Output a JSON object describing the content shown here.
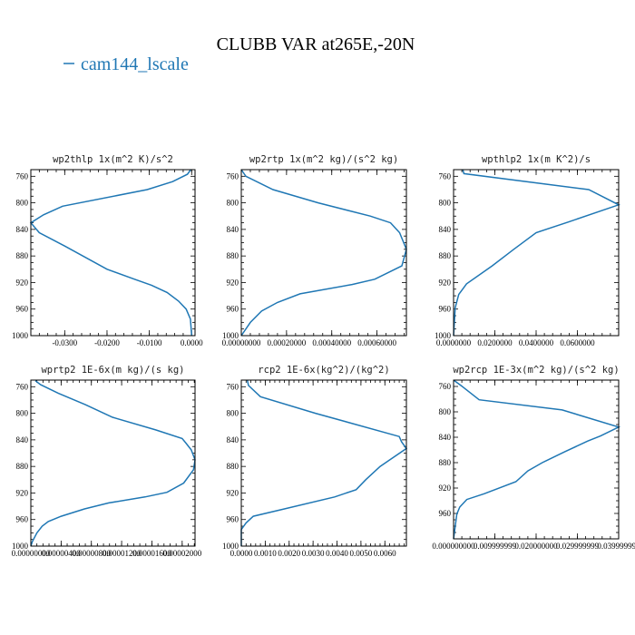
{
  "figure": {
    "title": "CLUBB VAR at265E,-20N",
    "legend": "cam144_lscale",
    "legend_color": "#1f77b4"
  },
  "chart_data": [
    {
      "type": "line",
      "title": "wp2thlp   1x(m^2 K)/s^2",
      "xlim": [
        -0.038,
        0.0008
      ],
      "ylim": [
        1000,
        750
      ],
      "xticks": [
        -0.03,
        -0.02,
        -0.01,
        0.0
      ],
      "xtick_labels": [
        "-0.0300",
        "-0.0200",
        "-0.0100",
        "0.0000"
      ],
      "yticks": [
        760,
        800,
        840,
        880,
        920,
        960,
        1000
      ],
      "x": [
        -0.0002,
        -0.001,
        -0.0045,
        -0.0105,
        -0.0305,
        -0.035,
        -0.038,
        -0.036,
        -0.03,
        -0.02,
        -0.0135,
        -0.0095,
        -0.0058,
        -0.0031,
        -0.0013,
        -0.0003,
        0.0
      ],
      "y": [
        750,
        757,
        768,
        780,
        805,
        818,
        830,
        845,
        865,
        900,
        915,
        924,
        935,
        948,
        960,
        975,
        1000
      ]
    },
    {
      "type": "line",
      "title": "wp2rtp  1x(m^2 kg)/(s^2 kg)",
      "xlim": [
        0.0,
        0.00073
      ],
      "ylim": [
        1000,
        750
      ],
      "xticks": [
        0.0,
        0.0002,
        0.0004,
        0.0006
      ],
      "xtick_labels": [
        "0.00000000",
        "0.00020000",
        "0.00040000",
        "0.00060000"
      ],
      "yticks": [
        760,
        800,
        840,
        880,
        920,
        960,
        1000
      ],
      "x": [
        0.0,
        2e-05,
        0.00014,
        0.00034,
        0.00057,
        0.00066,
        0.0007,
        0.00073,
        0.00071,
        0.00059,
        0.00049,
        0.00026,
        0.00016,
        9e-05,
        4e-05,
        0.0
      ],
      "y": [
        750,
        760,
        780,
        800,
        820,
        830,
        845,
        870,
        895,
        915,
        923,
        937,
        950,
        963,
        980,
        1000
      ]
    },
    {
      "type": "line",
      "title": "wpthlp2  1x(m K^2)/s",
      "xlim": [
        0.0,
        0.08
      ],
      "ylim": [
        1000,
        750
      ],
      "xticks": [
        0.0,
        0.02,
        0.04,
        0.06
      ],
      "xtick_labels": [
        "0.0000000",
        "0.0200000",
        "0.0400000",
        "0.0600000"
      ],
      "yticks": [
        760,
        800,
        840,
        880,
        920,
        960,
        1000
      ],
      "x": [
        0.0045,
        0.005,
        0.0655,
        0.08,
        0.0555,
        0.04,
        0.0292,
        0.0187,
        0.0063,
        0.0025,
        0.0008,
        0.0
      ],
      "y": [
        750,
        756,
        780,
        803,
        829,
        845,
        870,
        895,
        922,
        938,
        958,
        1000
      ]
    },
    {
      "type": "line",
      "title": "wprtp2  1E-6x(m kg)/(s kg)",
      "xlim": [
        0.0,
        2.17e-05
      ],
      "ylim": [
        1000,
        750
      ],
      "xticks": [
        0.0,
        4e-06,
        8e-06,
        1.2e-05,
        1.6e-05,
        2e-05
      ],
      "xtick_labels": [
        "0.00000000",
        "0.00000400",
        "0.00000800",
        "0.00001200",
        "0.00001600",
        "0.00002000"
      ],
      "yticks": [
        760,
        800,
        840,
        880,
        920,
        960,
        1000
      ],
      "x": [
        6e-07,
        1.3e-06,
        3.65e-06,
        7.2e-06,
        1.08e-05,
        1.65e-05,
        2e-05,
        2.05e-05,
        2.12e-05,
        2.17e-05,
        2.15e-05,
        2.02e-05,
        1.8e-05,
        1.51e-05,
        1.03e-05,
        7.1e-06,
        4e-06,
        2.3e-06,
        1.5e-06,
        8e-07,
        2e-07,
        0.0
      ],
      "y": [
        751,
        757,
        770,
        787,
        806,
        825,
        838,
        845,
        855,
        870,
        885,
        905,
        919,
        926,
        935,
        944,
        955,
        963,
        970,
        980,
        993,
        1000
      ]
    },
    {
      "type": "line",
      "title": "rcp2  1E-6x(kg^2)/(kg^2)",
      "xlim": [
        0.0,
        0.0069
      ],
      "ylim": [
        1000,
        750
      ],
      "xticks": [
        0.0,
        0.001,
        0.002,
        0.003,
        0.004,
        0.005,
        0.006
      ],
      "xtick_labels": [
        "0.0000",
        "0.0010",
        "0.0020",
        "0.0030",
        "0.0040",
        "0.0050",
        "0.0060"
      ],
      "yticks": [
        760,
        800,
        840,
        880,
        920,
        960,
        1000
      ],
      "x": [
        0.00025,
        0.0003,
        0.0008,
        0.0031,
        0.0066,
        0.0067,
        0.0069,
        0.0058,
        0.0052,
        0.0048,
        0.0039,
        0.0018,
        0.0005,
        0.0002,
        0.0,
        0.0
      ],
      "y": [
        750,
        758,
        775,
        800,
        835,
        843,
        853,
        880,
        900,
        915,
        926,
        944,
        955,
        965,
        975,
        1000
      ]
    },
    {
      "type": "line",
      "title": "wp2rcp  1E-3x(m^2 kg)/(s^2 kg)",
      "xlim": [
        0.0,
        0.04
      ],
      "ylim": [
        1000,
        750
      ],
      "xticks": [
        0.0,
        0.01,
        0.02,
        0.03,
        0.04
      ],
      "xtick_labels": [
        "0.000000000",
        "0.009999999",
        "0.020000000",
        "0.029999999",
        "0.039999998"
      ],
      "yticks": [
        760,
        800,
        840,
        880,
        920,
        960
      ],
      "x": [
        0.0,
        0.0017,
        0.0062,
        0.0263,
        0.04,
        0.0356,
        0.0325,
        0.0269,
        0.0215,
        0.018,
        0.0151,
        0.0074,
        0.0032,
        0.0015,
        0.0008,
        0.0
      ],
      "y": [
        750,
        758,
        781,
        797,
        824,
        838,
        846,
        863,
        880,
        893,
        910,
        929,
        938,
        950,
        961,
        1000
      ]
    }
  ]
}
